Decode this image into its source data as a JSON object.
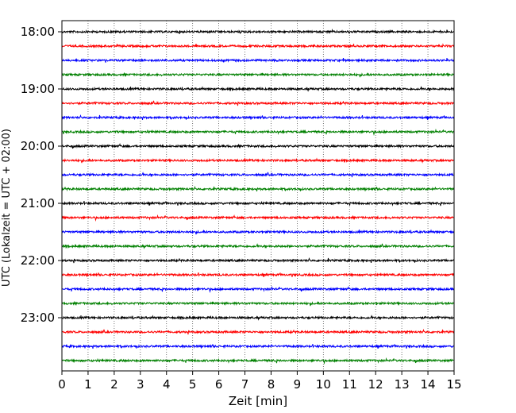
{
  "chart_data": {
    "type": "line",
    "title": "",
    "xlabel": "Zeit  [min]",
    "ylabel": "UTC (Lokalzeit = UTC + 02:00)",
    "xlim": [
      0,
      15
    ],
    "x_ticks": [
      "0",
      "1",
      "2",
      "3",
      "4",
      "5",
      "6",
      "7",
      "8",
      "9",
      "10",
      "11",
      "12",
      "13",
      "14",
      "15"
    ],
    "y_tick_labels": [
      "18:00",
      "19:00",
      "20:00",
      "21:00",
      "22:00",
      "23:00"
    ],
    "grid": "vertical dotted",
    "trace_colors": [
      "#000000",
      "#ff0000",
      "#0000ff",
      "#008000"
    ],
    "series": [
      {
        "utc_start": "18:00",
        "color": "#000000"
      },
      {
        "utc_start": "18:15",
        "color": "#ff0000"
      },
      {
        "utc_start": "18:30",
        "color": "#0000ff"
      },
      {
        "utc_start": "18:45",
        "color": "#008000"
      },
      {
        "utc_start": "19:00",
        "color": "#000000"
      },
      {
        "utc_start": "19:15",
        "color": "#ff0000"
      },
      {
        "utc_start": "19:30",
        "color": "#0000ff"
      },
      {
        "utc_start": "19:45",
        "color": "#008000"
      },
      {
        "utc_start": "20:00",
        "color": "#000000"
      },
      {
        "utc_start": "20:15",
        "color": "#ff0000"
      },
      {
        "utc_start": "20:30",
        "color": "#0000ff"
      },
      {
        "utc_start": "20:45",
        "color": "#008000"
      },
      {
        "utc_start": "21:00",
        "color": "#000000"
      },
      {
        "utc_start": "21:15",
        "color": "#ff0000"
      },
      {
        "utc_start": "21:30",
        "color": "#0000ff"
      },
      {
        "utc_start": "21:45",
        "color": "#008000"
      },
      {
        "utc_start": "22:00",
        "color": "#000000"
      },
      {
        "utc_start": "22:15",
        "color": "#ff0000"
      },
      {
        "utc_start": "22:30",
        "color": "#0000ff"
      },
      {
        "utc_start": "22:45",
        "color": "#008000"
      },
      {
        "utc_start": "23:00",
        "color": "#000000"
      },
      {
        "utc_start": "23:15",
        "color": "#ff0000"
      },
      {
        "utc_start": "23:30",
        "color": "#0000ff"
      },
      {
        "utc_start": "23:45",
        "color": "#008000"
      }
    ]
  }
}
